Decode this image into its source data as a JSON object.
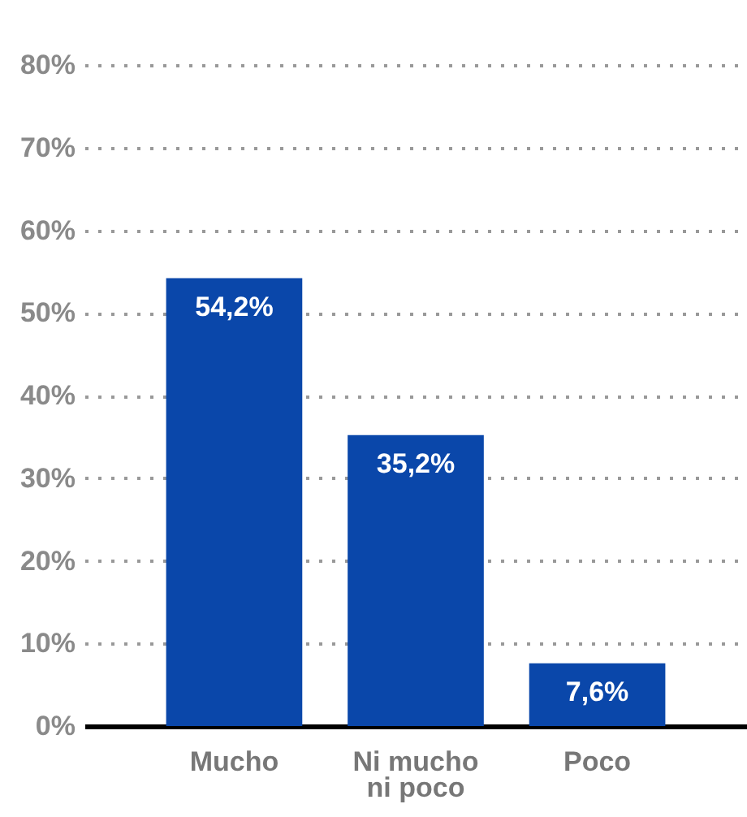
{
  "chart_data": {
    "type": "bar",
    "categories": [
      "Mucho",
      "Ni mucho ni poco",
      "Poco"
    ],
    "values": [
      54.2,
      35.2,
      7.6
    ],
    "color": "#0a47aa",
    "value_labels": [
      "54,2%",
      "35,2%",
      "7,6%"
    ],
    "ylim": [
      0,
      80
    ],
    "yticks": [
      {
        "value": 0,
        "label": "0%"
      },
      {
        "value": 10,
        "label": "10%"
      },
      {
        "value": 20,
        "label": "20%"
      },
      {
        "value": 30,
        "label": "30%"
      },
      {
        "value": 40,
        "label": "40%"
      },
      {
        "value": 50,
        "label": "50%"
      },
      {
        "value": 60,
        "label": "60%"
      },
      {
        "value": 70,
        "label": "70%"
      },
      {
        "value": 80,
        "label": "80%"
      }
    ],
    "grid": "y"
  }
}
